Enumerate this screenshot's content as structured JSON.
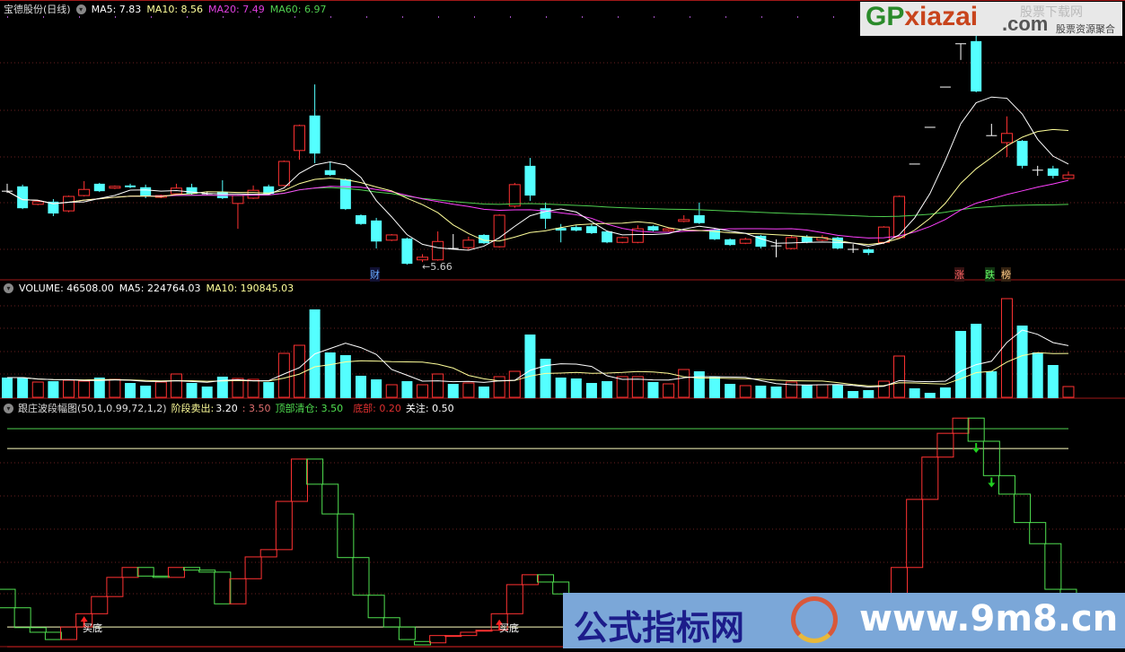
{
  "price_header": {
    "name": "宝德股份(日线)",
    "ma5": "MA5: 7.83",
    "ma10": "MA10: 8.56",
    "ma20": "MA20: 7.49",
    "ma60": "MA60: 6.97"
  },
  "volume_header": {
    "volume": "VOLUME: 46508.00",
    "ma5": "MA5: 224764.03",
    "ma10": "MA10: 190845.03"
  },
  "indicator_header": {
    "name": "跟庄波段幅图(50,1,0.99,72,1,2)",
    "sell_label": "阶段卖出:",
    "sell_value": "3.20",
    "sell_value2": ": 3.50",
    "top_label": "顶部清仓: 3.50",
    "bottom_label": "底部: 0.20",
    "watch_label": "关注: 0.50"
  },
  "markers": {
    "low_price": "←5.66",
    "cai": "财",
    "zhang": "涨",
    "die": "跌",
    "bang": "榜",
    "buy_bottom": "买底"
  },
  "watermarks": {
    "gp_green": "GP",
    "gp_red": "xiazai",
    ".com": ".com",
    "gp_top": "股票下载网",
    "gp_sub": "股票资源聚合",
    "site_cn": "公式指标网",
    "site_url": "www.9m8.cn"
  },
  "colors": {
    "up": "#ff3232",
    "down": "#54ffff",
    "doji": "#ffffff",
    "ma5": "#ffffff",
    "ma10": "#ffff9a",
    "ma20": "#ff40ff",
    "ma60": "#50d050",
    "wave_up": "#ff3232",
    "wave_down": "#50e050",
    "bg": "#000000"
  },
  "chart_data": [
    {
      "type": "candlestick",
      "title": "宝德股份(日线)",
      "ohlc": [
        [
          7.28,
          7.28,
          7.45,
          7.24
        ],
        [
          7.39,
          6.89,
          7.43,
          6.87
        ],
        [
          6.98,
          7.04,
          7.08,
          6.96
        ],
        [
          7.04,
          6.77,
          7.1,
          6.71
        ],
        [
          6.83,
          7.16,
          7.18,
          6.8
        ],
        [
          7.18,
          7.32,
          7.51,
          7.16
        ],
        [
          7.45,
          7.28,
          7.47,
          7.26
        ],
        [
          7.35,
          7.39,
          7.41,
          7.33
        ],
        [
          7.41,
          7.37,
          7.45,
          7.35
        ],
        [
          7.37,
          7.18,
          7.43,
          7.12
        ],
        [
          7.14,
          7.18,
          7.2,
          7.12
        ],
        [
          7.22,
          7.35,
          7.45,
          7.2
        ],
        [
          7.37,
          7.22,
          7.45,
          7.2
        ],
        [
          7.22,
          7.22,
          7.26,
          7.18
        ],
        [
          7.26,
          7.12,
          7.53,
          7.1
        ],
        [
          7.0,
          7.18,
          7.2,
          6.42
        ],
        [
          7.12,
          7.3,
          7.41,
          7.1
        ],
        [
          7.39,
          7.22,
          7.43,
          7.2
        ],
        [
          7.41,
          7.96,
          7.98,
          7.39
        ],
        [
          8.21,
          8.78,
          8.8,
          8.0
        ],
        [
          9.01,
          8.14,
          9.72,
          7.92
        ],
        [
          7.76,
          7.65,
          7.96,
          7.63
        ],
        [
          7.55,
          6.87,
          7.57,
          6.85
        ],
        [
          6.73,
          6.53,
          6.75,
          6.51
        ],
        [
          6.61,
          6.13,
          6.67,
          5.97
        ],
        [
          6.16,
          6.28,
          6.3,
          6.14
        ],
        [
          6.2,
          5.62,
          6.22,
          5.6
        ],
        [
          5.71,
          5.77,
          5.84,
          5.66
        ],
        [
          5.71,
          6.13,
          6.36,
          5.69
        ],
        [
          5.97,
          5.97,
          6.3,
          5.95
        ],
        [
          5.99,
          6.16,
          6.24,
          5.93
        ],
        [
          6.28,
          6.09,
          6.3,
          6.07
        ],
        [
          6.01,
          6.73,
          6.75,
          5.99
        ],
        [
          6.94,
          7.43,
          7.47,
          6.9
        ],
        [
          7.86,
          7.18,
          8.04,
          7.06
        ],
        [
          6.89,
          6.65,
          7.02,
          6.42
        ],
        [
          6.44,
          6.38,
          6.53,
          6.11
        ],
        [
          6.46,
          6.38,
          6.5,
          6.36
        ],
        [
          6.48,
          6.32,
          6.52,
          6.3
        ],
        [
          6.36,
          6.11,
          6.38,
          6.09
        ],
        [
          6.11,
          6.22,
          6.24,
          6.09
        ],
        [
          6.11,
          6.42,
          6.5,
          6.09
        ],
        [
          6.48,
          6.38,
          6.5,
          6.36
        ],
        [
          6.38,
          6.42,
          6.44,
          6.36
        ],
        [
          6.59,
          6.63,
          6.73,
          6.57
        ],
        [
          6.73,
          6.55,
          7.02,
          6.53
        ],
        [
          6.4,
          6.18,
          6.44,
          6.16
        ],
        [
          6.18,
          6.05,
          6.2,
          6.03
        ],
        [
          6.09,
          6.18,
          6.22,
          6.07
        ],
        [
          6.26,
          6.01,
          6.28,
          5.97
        ],
        [
          6.03,
          6.03,
          6.18,
          5.77
        ],
        [
          5.97,
          6.22,
          6.26,
          5.95
        ],
        [
          6.24,
          6.11,
          6.28,
          6.09
        ],
        [
          6.16,
          6.22,
          6.28,
          6.14
        ],
        [
          6.22,
          5.97,
          6.24,
          5.95
        ],
        [
          5.95,
          5.95,
          6.07,
          5.87
        ],
        [
          5.95,
          5.87,
          5.97,
          5.82
        ],
        [
          6.11,
          6.46,
          6.48,
          6.07
        ],
        [
          6.22,
          7.16,
          7.18,
          6.2
        ],
        [
          7.9,
          7.9,
          7.9,
          7.9
        ],
        [
          8.74,
          8.74,
          8.74,
          8.74
        ],
        [
          9.66,
          9.66,
          9.66,
          9.66
        ],
        [
          10.65,
          10.65,
          10.65,
          10.28
        ],
        [
          10.71,
          9.56,
          11.04,
          9.54
        ],
        [
          8.55,
          8.55,
          8.82,
          8.55
        ],
        [
          8.39,
          8.6,
          8.99,
          8.06
        ],
        [
          8.43,
          7.86,
          8.45,
          7.8
        ],
        [
          7.76,
          7.76,
          7.86,
          7.63
        ],
        [
          7.8,
          7.63,
          7.86,
          7.57
        ],
        [
          7.57,
          7.65,
          7.73,
          7.55
        ]
      ],
      "ylim": [
        5.4,
        11.2
      ],
      "moving_averages": [
        "MA5",
        "MA10",
        "MA20",
        "MA60"
      ],
      "grid": true
    },
    {
      "type": "bar",
      "title": "VOLUME",
      "values": [
        82300,
        82300,
        64400,
        68000,
        71600,
        68000,
        82300,
        75100,
        60800,
        50100,
        64400,
        96600,
        60800,
        46500,
        85900,
        78700,
        75100,
        64400,
        178900,
        211100,
        354200,
        182500,
        171700,
        89500,
        75100,
        53700,
        68000,
        53700,
        96600,
        57200,
        60800,
        46500,
        85900,
        107300,
        254000,
        157400,
        82300,
        78700,
        60800,
        68000,
        85900,
        85900,
        64400,
        57200,
        114500,
        107300,
        85900,
        57200,
        50100,
        50100,
        46500,
        64400,
        53700,
        53700,
        53700,
        28600,
        32200,
        68000,
        168200,
        39400,
        21500,
        42900,
        268400,
        297000,
        107300,
        397200,
        289800,
        182500,
        132400,
        46508
      ],
      "ylim": [
        0,
        420000
      ],
      "moving_averages": [
        "MA5",
        "MA10"
      ],
      "grid": true
    },
    {
      "type": "box-steps",
      "title": "跟庄波段幅图(50,1,0.99,72,1,2)",
      "steps": [
        [
          1.07,
          0.79
        ],
        [
          0.79,
          0.49
        ],
        [
          0.49,
          0.42
        ],
        [
          0.42,
          0.31
        ],
        [
          0.31,
          0.5
        ],
        [
          0.5,
          0.7
        ],
        [
          0.7,
          0.96
        ],
        [
          0.96,
          1.25
        ],
        [
          1.25,
          1.4
        ],
        [
          1.4,
          1.27
        ],
        [
          1.27,
          1.25
        ],
        [
          1.25,
          1.4
        ],
        [
          1.4,
          1.36
        ],
        [
          1.36,
          1.33
        ],
        [
          1.33,
          0.85
        ],
        [
          0.85,
          1.23
        ],
        [
          1.23,
          1.56
        ],
        [
          1.56,
          1.67
        ],
        [
          1.67,
          2.4
        ],
        [
          2.4,
          3.04
        ],
        [
          3.04,
          2.66
        ],
        [
          2.66,
          2.21
        ],
        [
          2.21,
          1.55
        ],
        [
          1.55,
          0.98
        ],
        [
          0.98,
          0.64
        ],
        [
          0.64,
          0.5
        ],
        [
          0.5,
          0.31
        ],
        [
          0.28,
          0.23
        ],
        [
          0.26,
          0.37
        ],
        [
          0.37,
          0.37
        ],
        [
          0.37,
          0.42
        ],
        [
          0.44,
          0.45
        ],
        [
          0.45,
          0.7
        ],
        [
          0.7,
          1.14
        ],
        [
          1.14,
          1.29
        ],
        [
          1.29,
          1.18
        ],
        [
          1.18,
          1.0
        ],
        [
          1.0,
          0.85
        ],
        [
          0.85,
          0.7
        ],
        [
          0.7,
          0.6
        ],
        [
          0.6,
          0.65
        ],
        [
          0.65,
          0.75
        ],
        [
          0.75,
          0.7
        ],
        [
          0.7,
          0.72
        ],
        [
          0.72,
          0.8
        ],
        [
          0.8,
          0.74
        ],
        [
          0.74,
          0.62
        ],
        [
          0.62,
          0.52
        ],
        [
          0.52,
          0.55
        ],
        [
          0.55,
          0.45
        ],
        [
          0.45,
          0.42
        ],
        [
          0.42,
          0.5
        ],
        [
          0.5,
          0.46
        ],
        [
          0.46,
          0.48
        ],
        [
          0.48,
          0.38
        ],
        [
          0.38,
          0.35
        ],
        [
          0.35,
          0.3
        ],
        [
          0.3,
          0.8
        ],
        [
          0.8,
          1.4
        ],
        [
          1.4,
          2.43
        ],
        [
          2.43,
          3.07
        ],
        [
          3.07,
          3.43
        ],
        [
          3.43,
          3.66
        ],
        [
          3.66,
          3.31
        ],
        [
          3.31,
          2.79
        ],
        [
          2.79,
          2.51
        ],
        [
          2.51,
          2.08
        ],
        [
          2.08,
          1.76
        ],
        [
          1.76,
          1.07
        ],
        [
          1.07,
          0.7
        ]
      ],
      "reference_lines": [
        {
          "name": "顶部清仓",
          "value": 3.5
        },
        {
          "name": "阶段卖出",
          "value": 3.2
        },
        {
          "name": "关注",
          "value": 0.5
        },
        {
          "name": "底部",
          "value": 0.2
        }
      ],
      "buy_signals": [
        5,
        32
      ],
      "sell_signals": [
        63,
        64
      ],
      "ylim": [
        0.2,
        3.75
      ]
    }
  ]
}
